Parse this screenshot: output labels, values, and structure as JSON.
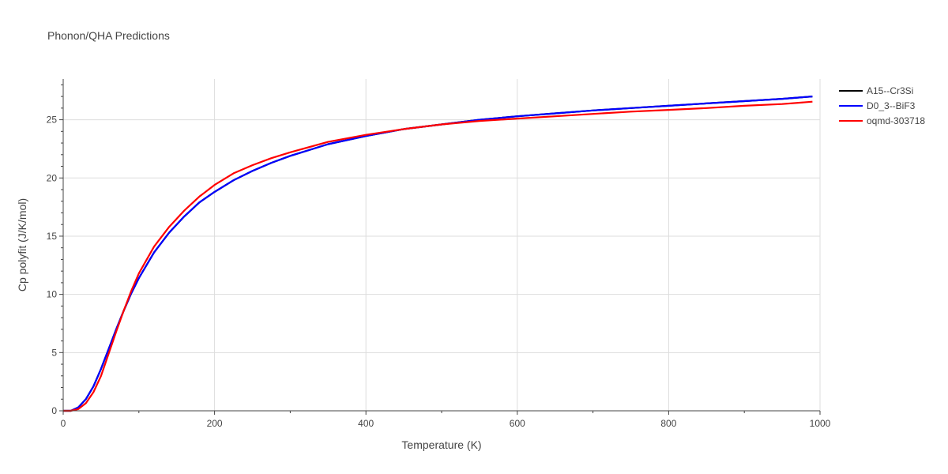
{
  "chart_data": {
    "type": "line",
    "title": "Phonon/QHA Predictions",
    "xlabel": "Temperature (K)",
    "ylabel": "Cp polyfit (J/K/mol)",
    "xlim": [
      0,
      1000
    ],
    "ylim": [
      0,
      28.5
    ],
    "x_ticks": [
      0,
      200,
      400,
      600,
      800,
      1000
    ],
    "y_ticks": [
      0,
      5,
      10,
      15,
      20,
      25
    ],
    "grid": true,
    "legend_position": "top-right",
    "series": [
      {
        "name": "A15--Cr3Si",
        "color": "#000000",
        "points": [
          [
            0,
            0
          ],
          [
            10,
            0
          ],
          [
            20,
            0.3
          ],
          [
            30,
            1.0
          ],
          [
            40,
            2.1
          ],
          [
            50,
            3.6
          ],
          [
            60,
            5.3
          ],
          [
            70,
            7.0
          ],
          [
            80,
            8.6
          ],
          [
            90,
            10.1
          ],
          [
            100,
            11.4
          ],
          [
            120,
            13.6
          ],
          [
            140,
            15.3
          ],
          [
            160,
            16.7
          ],
          [
            180,
            17.9
          ],
          [
            200,
            18.8
          ],
          [
            225,
            19.8
          ],
          [
            250,
            20.6
          ],
          [
            275,
            21.3
          ],
          [
            300,
            21.9
          ],
          [
            350,
            22.9
          ],
          [
            400,
            23.6
          ],
          [
            450,
            24.2
          ],
          [
            500,
            24.6
          ],
          [
            550,
            25.0
          ],
          [
            600,
            25.3
          ],
          [
            650,
            25.55
          ],
          [
            700,
            25.8
          ],
          [
            750,
            26.0
          ],
          [
            800,
            26.2
          ],
          [
            850,
            26.4
          ],
          [
            900,
            26.6
          ],
          [
            950,
            26.8
          ],
          [
            990,
            27.0
          ]
        ]
      },
      {
        "name": "D0_3--BiF3",
        "color": "#0000ff",
        "points": [
          [
            0,
            0
          ],
          [
            10,
            0
          ],
          [
            20,
            0.3
          ],
          [
            30,
            1.0
          ],
          [
            40,
            2.1
          ],
          [
            50,
            3.6
          ],
          [
            60,
            5.3
          ],
          [
            70,
            7.0
          ],
          [
            80,
            8.6
          ],
          [
            90,
            10.1
          ],
          [
            100,
            11.4
          ],
          [
            120,
            13.6
          ],
          [
            140,
            15.3
          ],
          [
            160,
            16.7
          ],
          [
            180,
            17.9
          ],
          [
            200,
            18.8
          ],
          [
            225,
            19.8
          ],
          [
            250,
            20.6
          ],
          [
            275,
            21.3
          ],
          [
            300,
            21.9
          ],
          [
            350,
            22.9
          ],
          [
            400,
            23.6
          ],
          [
            450,
            24.2
          ],
          [
            500,
            24.6
          ],
          [
            550,
            25.0
          ],
          [
            600,
            25.3
          ],
          [
            650,
            25.55
          ],
          [
            700,
            25.8
          ],
          [
            750,
            26.0
          ],
          [
            800,
            26.2
          ],
          [
            850,
            26.4
          ],
          [
            900,
            26.6
          ],
          [
            950,
            26.8
          ],
          [
            990,
            27.0
          ]
        ]
      },
      {
        "name": "oqmd-303718",
        "color": "#ff0000",
        "points": [
          [
            0,
            0
          ],
          [
            10,
            0
          ],
          [
            20,
            0.15
          ],
          [
            30,
            0.65
          ],
          [
            40,
            1.6
          ],
          [
            50,
            3.0
          ],
          [
            60,
            4.9
          ],
          [
            70,
            6.8
          ],
          [
            80,
            8.6
          ],
          [
            90,
            10.3
          ],
          [
            100,
            11.8
          ],
          [
            120,
            14.1
          ],
          [
            140,
            15.8
          ],
          [
            160,
            17.2
          ],
          [
            180,
            18.4
          ],
          [
            200,
            19.4
          ],
          [
            225,
            20.4
          ],
          [
            250,
            21.1
          ],
          [
            275,
            21.7
          ],
          [
            300,
            22.2
          ],
          [
            350,
            23.1
          ],
          [
            400,
            23.7
          ],
          [
            450,
            24.2
          ],
          [
            500,
            24.6
          ],
          [
            550,
            24.9
          ],
          [
            600,
            25.1
          ],
          [
            650,
            25.3
          ],
          [
            700,
            25.5
          ],
          [
            750,
            25.7
          ],
          [
            800,
            25.85
          ],
          [
            850,
            26.0
          ],
          [
            900,
            26.2
          ],
          [
            950,
            26.35
          ],
          [
            990,
            26.55
          ]
        ]
      }
    ]
  }
}
